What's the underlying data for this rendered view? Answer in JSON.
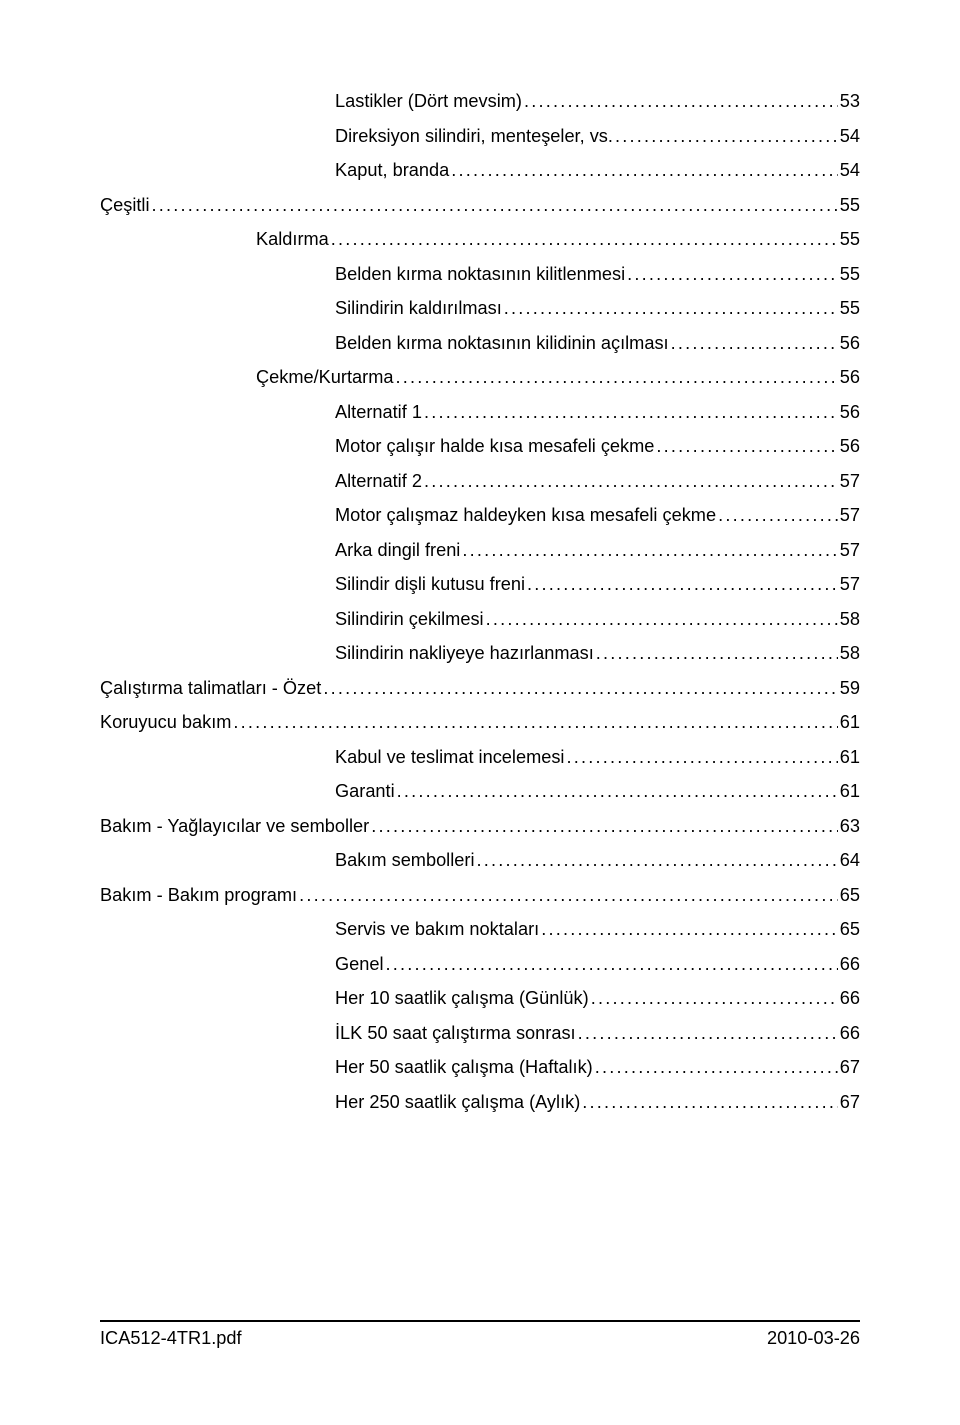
{
  "toc": [
    {
      "indent": 2,
      "label": "Lastikler (Dört mevsim)",
      "page": "53"
    },
    {
      "indent": 2,
      "label": "Direksiyon silindiri, menteşeler, vs.",
      "page": "54"
    },
    {
      "indent": 2,
      "label": "Kaput, branda",
      "page": "54"
    },
    {
      "indent": 0,
      "label": "Çeşitli",
      "page": "55"
    },
    {
      "indent": 1,
      "label": "Kaldırma",
      "page": "55"
    },
    {
      "indent": 2,
      "label": "Belden kırma noktasının kilitlenmesi",
      "page": "55"
    },
    {
      "indent": 2,
      "label": "Silindirin kaldırılması",
      "page": "55"
    },
    {
      "indent": 2,
      "label": "Belden kırma noktasının kilidinin açılması",
      "page": "56"
    },
    {
      "indent": 1,
      "label": "Çekme/Kurtarma",
      "page": "56"
    },
    {
      "indent": 2,
      "label": "Alternatif 1",
      "page": "56"
    },
    {
      "indent": 2,
      "label": "Motor çalışır halde kısa mesafeli çekme",
      "page": "56"
    },
    {
      "indent": 2,
      "label": "Alternatif 2",
      "page": "57"
    },
    {
      "indent": 2,
      "label": "Motor çalışmaz haldeyken kısa mesafeli çekme",
      "page": "57"
    },
    {
      "indent": 2,
      "label": "Arka dingil freni",
      "page": "57"
    },
    {
      "indent": 2,
      "label": "Silindir dişli kutusu freni",
      "page": "57"
    },
    {
      "indent": 2,
      "label": "Silindirin çekilmesi",
      "page": "58"
    },
    {
      "indent": 2,
      "label": "Silindirin nakliyeye hazırlanması",
      "page": "58"
    },
    {
      "indent": 0,
      "label": "Çalıştırma talimatları - Özet",
      "page": "59"
    },
    {
      "indent": 0,
      "label": "Koruyucu bakım",
      "page": "61"
    },
    {
      "indent": 2,
      "label": "Kabul ve teslimat incelemesi",
      "page": "61"
    },
    {
      "indent": 2,
      "label": "Garanti",
      "page": "61"
    },
    {
      "indent": 0,
      "label": "Bakım - Yağlayıcılar ve semboller",
      "page": "63"
    },
    {
      "indent": 2,
      "label": "Bakım sembolleri",
      "page": "64"
    },
    {
      "indent": 0,
      "label": "Bakım - Bakım programı",
      "page": "65"
    },
    {
      "indent": 2,
      "label": "Servis ve bakım noktaları",
      "page": "65"
    },
    {
      "indent": 2,
      "label": "Genel",
      "page": "66"
    },
    {
      "indent": 2,
      "label": "Her 10 saatlik çalışma (Günlük)",
      "page": "66"
    },
    {
      "indent": 2,
      "label": "İLK 50 saat çalıştırma sonrası",
      "page": "66"
    },
    {
      "indent": 2,
      "label": "Her 50 saatlik çalışma (Haftalık)",
      "page": "67"
    },
    {
      "indent": 2,
      "label": "Her 250 saatlik çalışma (Aylık)",
      "page": "67"
    }
  ],
  "footer": {
    "left": "ICA512-4TR1.pdf",
    "right": "2010-03-26"
  }
}
